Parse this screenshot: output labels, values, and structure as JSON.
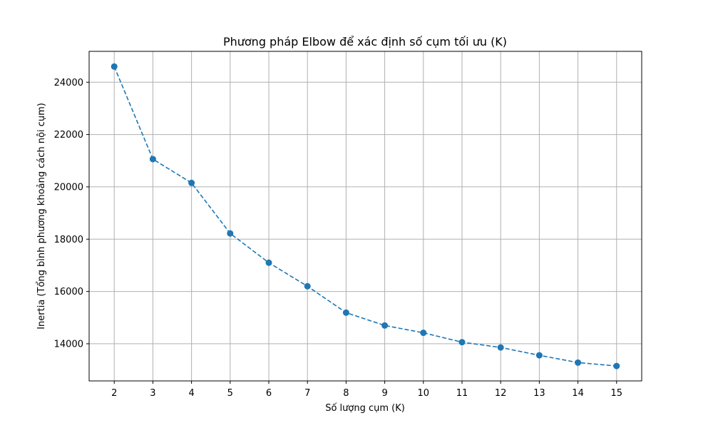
{
  "chart_data": {
    "type": "line",
    "title": "Phương pháp Elbow để xác định số cụm tối ưu (K)",
    "xlabel": "Số lượng cụm (K)",
    "ylabel": "Inertia (Tổng bình phương khoảng cách nội cụm)",
    "x": [
      2,
      3,
      4,
      5,
      6,
      7,
      8,
      9,
      10,
      11,
      12,
      13,
      14,
      15
    ],
    "series": [
      {
        "values": [
          24600,
          21060,
          20150,
          18220,
          17100,
          16200,
          15190,
          14700,
          14420,
          14060,
          13860,
          13560,
          13280,
          13150
        ],
        "color": "#1f77b4",
        "line_style": "dashed",
        "marker": "circle"
      }
    ],
    "xticks": [
      2,
      3,
      4,
      5,
      6,
      7,
      8,
      9,
      10,
      11,
      12,
      13,
      14,
      15
    ],
    "yticks": [
      14000,
      16000,
      18000,
      20000,
      22000,
      24000
    ],
    "xlim": [
      1.35,
      15.65
    ],
    "ylim": [
      12580,
      25180
    ],
    "grid": true,
    "grid_color": "#b0b0b0"
  }
}
